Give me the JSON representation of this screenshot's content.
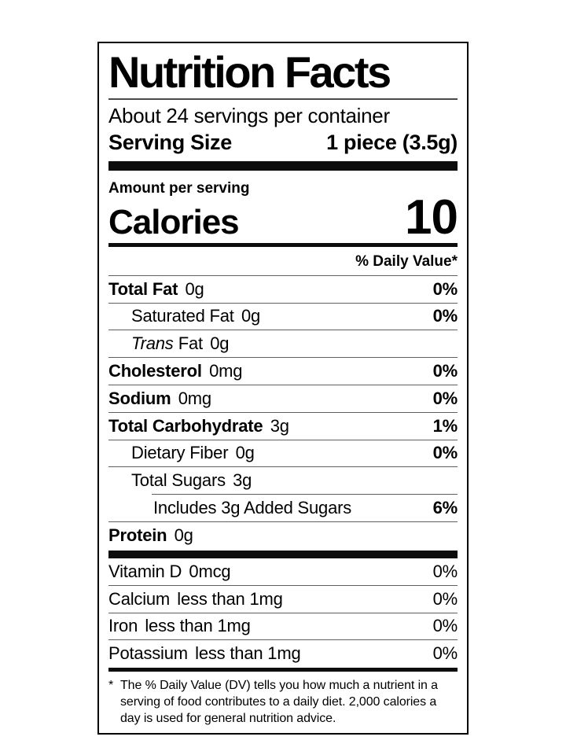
{
  "label": {
    "title": "Nutrition Facts",
    "servings_per_container": "About 24 servings per container",
    "serving_size": {
      "label": "Serving Size",
      "value": "1 piece (3.5g)"
    },
    "amount_per_serving": "Amount per serving",
    "calories": {
      "label": "Calories",
      "value": "10"
    },
    "daily_value_header": "% Daily Value*",
    "nutrients": [
      {
        "name": "Total Fat",
        "amount": "0g",
        "dv": "0%"
      },
      {
        "name": "Saturated Fat",
        "amount": "0g",
        "dv": "0%"
      },
      {
        "name_italic": "Trans",
        "name": "Fat",
        "amount": "0g",
        "dv": ""
      },
      {
        "name": "Cholesterol",
        "amount": "0mg",
        "dv": "0%"
      },
      {
        "name": "Sodium",
        "amount": "0mg",
        "dv": "0%"
      },
      {
        "name": "Total Carbohydrate",
        "amount": "3g",
        "dv": "1%"
      },
      {
        "name": "Dietary Fiber",
        "amount": "0g",
        "dv": "0%"
      },
      {
        "name": "Total Sugars",
        "amount": "3g",
        "dv": ""
      },
      {
        "name": "Includes 3g Added Sugars",
        "amount": "",
        "dv": "6%"
      },
      {
        "name": "Protein",
        "amount": "0g",
        "dv": ""
      }
    ],
    "micronutrients": [
      {
        "name": "Vitamin D",
        "amount": "0mcg",
        "dv": "0%"
      },
      {
        "name": "Calcium",
        "amount": "less than 1mg",
        "dv": "0%"
      },
      {
        "name": "Iron",
        "amount": "less than 1mg",
        "dv": "0%"
      },
      {
        "name": "Potassium",
        "amount": "less than 1mg",
        "dv": "0%"
      }
    ],
    "footnote": {
      "marker": "*",
      "text": "The % Daily Value (DV) tells you how much a nutrient in a serving of food contributes to a daily diet. 2,000 calories a day is used for general nutrition advice."
    }
  }
}
